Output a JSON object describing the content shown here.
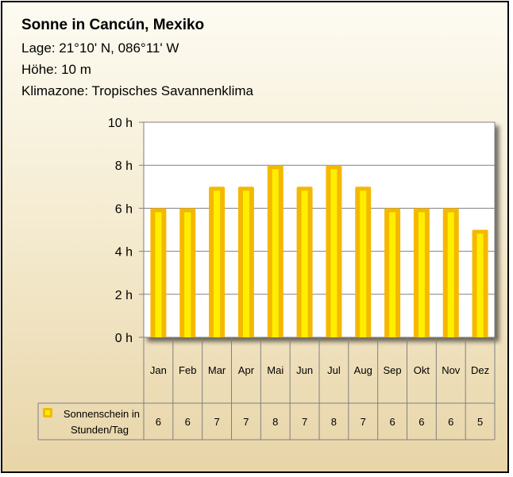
{
  "header": {
    "title": "Sonne in Cancún, Mexiko",
    "location": "Lage: 21°10' N, 086°11' W",
    "altitude": "Höhe: 10 m",
    "climate_zone": "Klimazone: Tropisches Savannenklima"
  },
  "colors": {
    "bar_edge": "#f5b800",
    "bar_fill": "#ffee00",
    "plot_bg": "#ffffff"
  },
  "chart_data": {
    "type": "bar",
    "categories": [
      "Jan",
      "Feb",
      "Mar",
      "Apr",
      "Mai",
      "Jun",
      "Jul",
      "Aug",
      "Sep",
      "Okt",
      "Nov",
      "Dez"
    ],
    "series": [
      {
        "name": "Sonnenschein in Stunden/Tag",
        "values": [
          6,
          6,
          7,
          7,
          8,
          7,
          8,
          7,
          6,
          6,
          6,
          5
        ]
      }
    ],
    "ylim": [
      0,
      10
    ],
    "y_ticks": [
      0,
      2,
      4,
      6,
      8,
      10
    ],
    "y_tick_labels": [
      "0 h",
      "2 h",
      "4 h",
      "6 h",
      "8 h",
      "10 h"
    ],
    "grid": true,
    "legend_placement": "data table below chart",
    "legend_lines": [
      "Sonnenschein  in",
      "Stunden/Tag"
    ],
    "title": "",
    "xlabel": "",
    "ylabel": ""
  }
}
